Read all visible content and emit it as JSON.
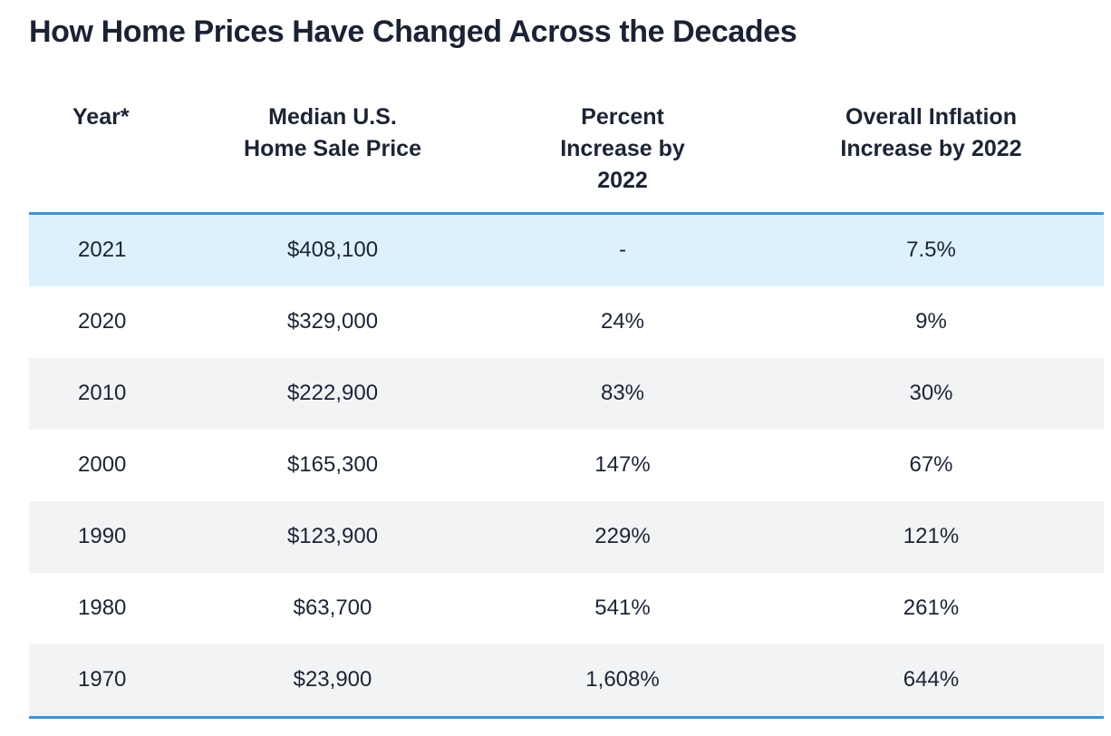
{
  "title": "How Home Prices Have Changed Across the Decades",
  "colors": {
    "header_rule": "#3d93d6",
    "highlight_row": "#dcf1fd",
    "alt_row": "#f2f3f5",
    "text": "#1c2434"
  },
  "chart_data": {
    "type": "table",
    "title": "How Home Prices Have Changed Across the Decades",
    "columns": [
      "Year*",
      "Median U.S.\nHome Sale Price",
      "Percent\nIncrease by\n2022",
      "Overall Inflation\nIncrease by 2022"
    ],
    "rows": [
      [
        "2021",
        "$408,100",
        "-",
        "7.5%"
      ],
      [
        "2020",
        "$329,000",
        "24%",
        "9%"
      ],
      [
        "2010",
        "$222,900",
        "83%",
        "30%"
      ],
      [
        "2000",
        "$165,300",
        "147%",
        "67%"
      ],
      [
        "1990",
        "$123,900",
        "229%",
        "121%"
      ],
      [
        "1980",
        "$63,700",
        "541%",
        "261%"
      ],
      [
        "1970",
        "$23,900",
        "1,608%",
        "644%"
      ]
    ]
  }
}
